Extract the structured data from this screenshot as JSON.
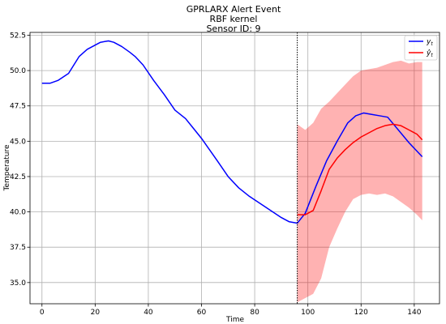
{
  "chart_data": {
    "type": "line",
    "title_lines": [
      "GPRLARX Alert Event",
      "RBF kernel",
      "Sensor ID: 9"
    ],
    "xlabel": "Time",
    "ylabel": "Temperature",
    "xlim": [
      -4.5,
      149.5
    ],
    "ylim": [
      33.5,
      52.7
    ],
    "xticks": [
      0,
      20,
      40,
      60,
      80,
      100,
      120,
      140
    ],
    "yticks": [
      35.0,
      37.5,
      40.0,
      42.5,
      45.0,
      47.5,
      50.0,
      52.5
    ],
    "xtick_labels": [
      "0",
      "20",
      "40",
      "60",
      "80",
      "100",
      "120",
      "140"
    ],
    "ytick_labels": [
      "35.0",
      "37.5",
      "40.0",
      "42.5",
      "45.0",
      "47.5",
      "50.0",
      "52.5"
    ],
    "grid": true,
    "legend_position": "upper right",
    "alert_line_x": 96,
    "series": [
      {
        "name": "y_t",
        "legend_label": "y",
        "legend_sub": "t",
        "color": "#0000ff",
        "x": [
          0,
          3,
          6,
          10,
          14,
          17,
          20,
          22,
          25,
          27,
          30,
          33,
          35,
          38,
          42,
          46,
          50,
          54,
          57,
          60,
          63,
          66,
          70,
          74,
          78,
          82,
          86,
          90,
          93,
          96,
          99,
          103,
          107,
          111,
          115,
          118,
          121,
          124,
          127,
          130,
          134,
          138,
          143
        ],
        "values": [
          49.1,
          49.1,
          49.3,
          49.8,
          51.0,
          51.5,
          51.8,
          52.0,
          52.1,
          52.0,
          51.7,
          51.3,
          51.0,
          50.4,
          49.3,
          48.3,
          47.2,
          46.6,
          45.9,
          45.2,
          44.4,
          43.6,
          42.5,
          41.7,
          41.1,
          40.6,
          40.1,
          39.6,
          39.3,
          39.2,
          39.9,
          41.8,
          43.6,
          45.0,
          46.3,
          46.8,
          47.0,
          46.9,
          46.8,
          46.7,
          45.8,
          44.9,
          43.9
        ]
      },
      {
        "name": "ŷ_t",
        "legend_label": "ŷ",
        "legend_sub": "t",
        "color": "#ff0000",
        "x": [
          96,
          99,
          102,
          105,
          108,
          111,
          114,
          117,
          120,
          123,
          126,
          129,
          132,
          135,
          138,
          141,
          143
        ],
        "values": [
          39.8,
          39.8,
          40.1,
          41.5,
          43.0,
          43.8,
          44.4,
          44.9,
          45.3,
          45.6,
          45.9,
          46.1,
          46.2,
          46.1,
          45.8,
          45.5,
          45.1
        ],
        "band_upper": [
          46.2,
          45.8,
          46.3,
          47.3,
          47.8,
          48.4,
          49.0,
          49.6,
          50.0,
          50.1,
          50.2,
          50.4,
          50.6,
          50.7,
          50.5,
          50.6,
          50.6
        ],
        "band_lower": [
          33.6,
          33.9,
          34.2,
          35.3,
          37.5,
          38.8,
          40.0,
          40.9,
          41.2,
          41.3,
          41.2,
          41.3,
          41.1,
          40.7,
          40.3,
          39.8,
          39.4
        ]
      }
    ]
  }
}
